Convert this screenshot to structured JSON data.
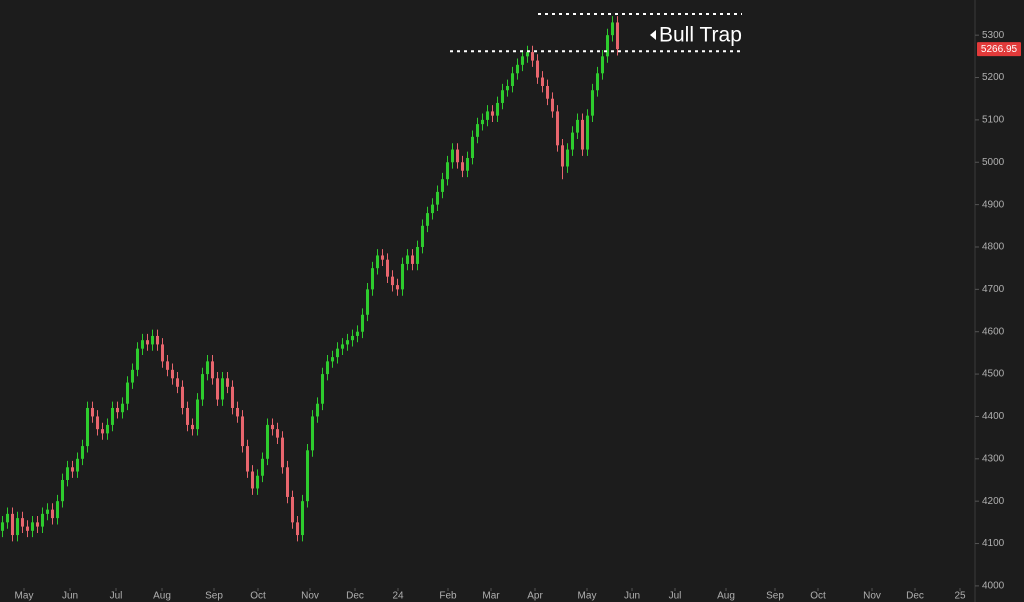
{
  "chart_data": {
    "type": "candlestick",
    "up_color": "#2ecc2e",
    "down_color": "#e8666e",
    "ylim": [
      3962,
      5383
    ],
    "yticks": [
      4000,
      4100,
      4200,
      4300,
      4400,
      4500,
      4600,
      4700,
      4800,
      4900,
      5000,
      5100,
      5200,
      5300
    ],
    "xlim": [
      0,
      195
    ],
    "xticks": [
      {
        "value": 4.8,
        "label": "May"
      },
      {
        "value": 14,
        "label": "Jun"
      },
      {
        "value": 23.2,
        "label": "Jul"
      },
      {
        "value": 32.4,
        "label": "Aug"
      },
      {
        "value": 42.8,
        "label": "Sep"
      },
      {
        "value": 51.6,
        "label": "Oct"
      },
      {
        "value": 62,
        "label": "Nov"
      },
      {
        "value": 71,
        "label": "Dec"
      },
      {
        "value": 79.6,
        "label": "24"
      },
      {
        "value": 89.6,
        "label": "Feb"
      },
      {
        "value": 98.2,
        "label": "Mar"
      },
      {
        "value": 107,
        "label": "Apr"
      },
      {
        "value": 117.4,
        "label": "May"
      },
      {
        "value": 126.4,
        "label": "Jun"
      },
      {
        "value": 135,
        "label": "Jul"
      },
      {
        "value": 145.2,
        "label": "Aug"
      },
      {
        "value": 155,
        "label": "Sep"
      },
      {
        "value": 163.6,
        "label": "Oct"
      },
      {
        "value": 174.4,
        "label": "Nov"
      },
      {
        "value": 183,
        "label": "Dec"
      },
      {
        "value": 192,
        "label": "25"
      }
    ],
    "last_price": 5266.95,
    "levels": [
      5350,
      5262
    ],
    "annotation": "Bull Trap",
    "candles": {
      "open": [
        4130,
        4150,
        4170,
        4120,
        4160,
        4140,
        4130,
        4150,
        4140,
        4170,
        4180,
        4160,
        4200,
        4250,
        4280,
        4270,
        4300,
        4330,
        4420,
        4400,
        4370,
        4360,
        4380,
        4420,
        4410,
        4430,
        4480,
        4510,
        4560,
        4580,
        4570,
        4590,
        4570,
        4530,
        4510,
        4490,
        4470,
        4420,
        4380,
        4370,
        4440,
        4500,
        4530,
        4490,
        4440,
        4490,
        4470,
        4420,
        4400,
        4330,
        4270,
        4230,
        4260,
        4300,
        4380,
        4370,
        4350,
        4280,
        4210,
        4150,
        4120,
        4200,
        4320,
        4400,
        4430,
        4500,
        4530,
        4540,
        4560,
        4570,
        4580,
        4590,
        4600,
        4640,
        4700,
        4750,
        4780,
        4770,
        4730,
        4710,
        4700,
        4760,
        4780,
        4760,
        4800,
        4850,
        4880,
        4900,
        4930,
        4960,
        5000,
        5030,
        5000,
        4980,
        5010,
        5060,
        5090,
        5100,
        5120,
        5110,
        5140,
        5170,
        5180,
        5210,
        5230,
        5250,
        5260,
        5240,
        5200,
        5180,
        5150,
        5120,
        5040,
        4990,
        5030,
        5070,
        5100,
        5030,
        5110,
        5170,
        5210,
        5250,
        5300,
        5330
      ],
      "high": [
        4165,
        4185,
        4185,
        4175,
        4175,
        4155,
        4165,
        4165,
        4185,
        4195,
        4195,
        4215,
        4265,
        4295,
        4295,
        4315,
        4345,
        4435,
        4435,
        4415,
        4385,
        4395,
        4435,
        4435,
        4445,
        4495,
        4525,
        4575,
        4595,
        4595,
        4605,
        4605,
        4585,
        4545,
        4525,
        4505,
        4485,
        4435,
        4395,
        4455,
        4515,
        4545,
        4545,
        4505,
        4505,
        4505,
        4485,
        4435,
        4415,
        4345,
        4285,
        4275,
        4315,
        4395,
        4395,
        4385,
        4365,
        4295,
        4225,
        4165,
        4215,
        4335,
        4415,
        4445,
        4515,
        4545,
        4555,
        4575,
        4585,
        4595,
        4605,
        4615,
        4655,
        4715,
        4765,
        4795,
        4795,
        4785,
        4745,
        4725,
        4775,
        4795,
        4795,
        4815,
        4865,
        4895,
        4915,
        4945,
        4975,
        5015,
        5045,
        5045,
        5015,
        5025,
        5075,
        5105,
        5115,
        5135,
        5135,
        5155,
        5185,
        5195,
        5225,
        5245,
        5265,
        5275,
        5275,
        5255,
        5215,
        5195,
        5165,
        5135,
        5055,
        5045,
        5085,
        5115,
        5115,
        5125,
        5185,
        5225,
        5265,
        5315,
        5345,
        5345
      ],
      "low": [
        4115,
        4135,
        4105,
        4105,
        4125,
        4115,
        4115,
        4125,
        4125,
        4155,
        4145,
        4145,
        4185,
        4235,
        4255,
        4255,
        4285,
        4315,
        4385,
        4355,
        4345,
        4345,
        4365,
        4395,
        4395,
        4415,
        4465,
        4495,
        4545,
        4555,
        4555,
        4555,
        4515,
        4495,
        4475,
        4455,
        4405,
        4365,
        4355,
        4355,
        4425,
        4485,
        4475,
        4425,
        4425,
        4455,
        4405,
        4385,
        4315,
        4255,
        4215,
        4215,
        4245,
        4285,
        4355,
        4335,
        4265,
        4195,
        4135,
        4105,
        4105,
        4185,
        4305,
        4385,
        4415,
        4485,
        4515,
        4525,
        4545,
        4555,
        4565,
        4575,
        4585,
        4625,
        4685,
        4735,
        4755,
        4715,
        4695,
        4685,
        4685,
        4745,
        4745,
        4745,
        4785,
        4835,
        4865,
        4885,
        4915,
        4945,
        4985,
        4985,
        4965,
        4965,
        4995,
        5045,
        5075,
        5085,
        5095,
        5095,
        5125,
        5155,
        5165,
        5195,
        5215,
        5235,
        5225,
        5185,
        5165,
        5135,
        5105,
        5025,
        4960,
        4975,
        5015,
        5055,
        5015,
        5015,
        5095,
        5155,
        5195,
        5235,
        5285,
        5252
      ],
      "close": [
        4150,
        4170,
        4120,
        4160,
        4140,
        4130,
        4150,
        4140,
        4170,
        4180,
        4160,
        4200,
        4250,
        4280,
        4270,
        4300,
        4330,
        4420,
        4400,
        4370,
        4360,
        4380,
        4420,
        4410,
        4430,
        4480,
        4510,
        4560,
        4580,
        4570,
        4590,
        4570,
        4530,
        4510,
        4490,
        4470,
        4420,
        4380,
        4370,
        4440,
        4500,
        4530,
        4490,
        4440,
        4490,
        4470,
        4420,
        4400,
        4330,
        4270,
        4230,
        4260,
        4300,
        4380,
        4370,
        4350,
        4280,
        4210,
        4150,
        4120,
        4200,
        4320,
        4400,
        4430,
        4500,
        4530,
        4540,
        4560,
        4570,
        4580,
        4590,
        4600,
        4640,
        4700,
        4750,
        4780,
        4770,
        4730,
        4710,
        4700,
        4760,
        4780,
        4760,
        4800,
        4850,
        4880,
        4900,
        4930,
        4960,
        5000,
        5030,
        5000,
        4980,
        5010,
        5060,
        5090,
        5100,
        5120,
        5110,
        5140,
        5170,
        5180,
        5210,
        5230,
        5250,
        5260,
        5240,
        5200,
        5180,
        5150,
        5120,
        5040,
        4990,
        5030,
        5070,
        5100,
        5030,
        5110,
        5170,
        5210,
        5250,
        5300,
        5330,
        5267
      ]
    }
  }
}
